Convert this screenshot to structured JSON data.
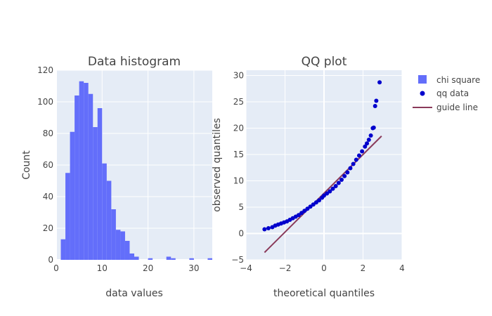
{
  "chart_data": [
    {
      "type": "bar",
      "title": "Data histogram",
      "xlabel": "data values",
      "ylabel": "Count",
      "xlim": [
        0,
        34
      ],
      "ylim": [
        0,
        120
      ],
      "xticks": [
        "0",
        "10",
        "20",
        "30"
      ],
      "yticks": [
        "0",
        "20",
        "40",
        "60",
        "80",
        "100",
        "120"
      ],
      "bin_width": 1,
      "bin_starts": [
        1,
        2,
        3,
        4,
        5,
        6,
        7,
        8,
        9,
        10,
        11,
        12,
        13,
        14,
        15,
        16,
        17,
        18,
        19,
        20,
        21,
        22,
        23,
        24,
        25,
        26,
        27,
        28,
        29,
        30,
        31,
        32,
        33
      ],
      "series": [
        {
          "name": "chi square",
          "color": "#636efa",
          "values": [
            13,
            55,
            81,
            104,
            113,
            112,
            105,
            84,
            96,
            61,
            50,
            32,
            19,
            18,
            12,
            4,
            2,
            0,
            0,
            1,
            0,
            0,
            0,
            2,
            1,
            0,
            0,
            0,
            1,
            0,
            0,
            0,
            1
          ]
        }
      ]
    },
    {
      "type": "scatter",
      "title": "QQ plot",
      "xlabel": "theoretical quantiles",
      "ylabel": "observed quantiles",
      "xlim": [
        -4,
        4
      ],
      "ylim": [
        -5,
        31
      ],
      "xticks": [
        "−4",
        "−2",
        "0",
        "2",
        "4"
      ],
      "yticks": [
        "−5",
        "0",
        "5",
        "10",
        "15",
        "20",
        "25",
        "30"
      ],
      "series": [
        {
          "name": "qq data",
          "color": "#0000cc",
          "x": [
            -3.05,
            -2.85,
            -2.65,
            -2.5,
            -2.35,
            -2.2,
            -2.05,
            -1.9,
            -1.75,
            -1.6,
            -1.45,
            -1.3,
            -1.15,
            -1.0,
            -0.85,
            -0.7,
            -0.55,
            -0.4,
            -0.25,
            -0.1,
            0.0,
            0.15,
            0.3,
            0.45,
            0.6,
            0.75,
            0.9,
            1.05,
            1.2,
            1.35,
            1.5,
            1.65,
            1.8,
            1.95,
            2.1,
            2.2,
            2.3,
            2.4,
            2.5,
            2.55,
            2.62,
            2.68,
            2.85
          ],
          "y": [
            0.8,
            1.0,
            1.2,
            1.5,
            1.7,
            1.9,
            2.1,
            2.3,
            2.6,
            2.9,
            3.2,
            3.5,
            3.9,
            4.3,
            4.7,
            5.1,
            5.5,
            5.9,
            6.3,
            6.8,
            7.2,
            7.6,
            8.0,
            8.5,
            9.0,
            9.6,
            10.2,
            10.9,
            11.6,
            12.4,
            13.2,
            14.0,
            14.8,
            15.6,
            16.5,
            17.1,
            17.8,
            18.6,
            20.0,
            20.1,
            24.2,
            25.2,
            28.7
          ]
        },
        {
          "name": "guide line",
          "color": "#8a3a5a",
          "x": [
            -3.05,
            2.95
          ],
          "y": [
            -3.6,
            18.5
          ]
        }
      ]
    }
  ],
  "legend": {
    "placement": "top-right",
    "items": [
      {
        "label": "chi square",
        "symbol": "square",
        "color": "#636efa"
      },
      {
        "label": "qq data",
        "symbol": "dot",
        "color": "#0000cc"
      },
      {
        "label": "guide line",
        "symbol": "line",
        "color": "#8a3a5a"
      }
    ]
  }
}
